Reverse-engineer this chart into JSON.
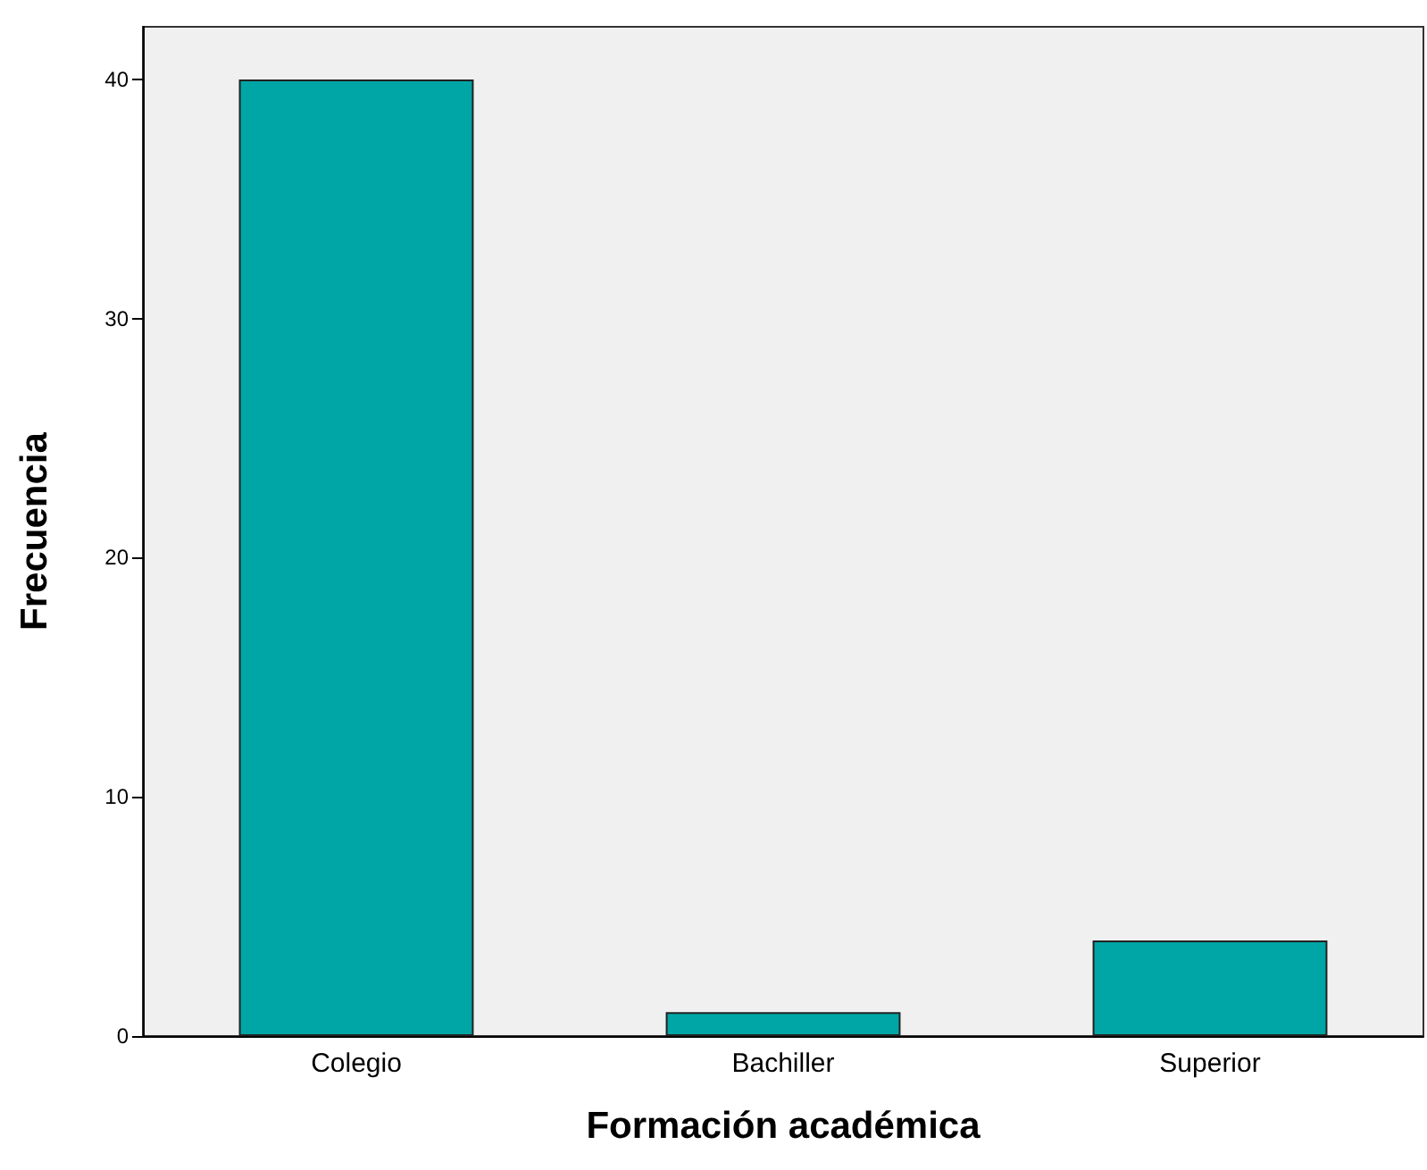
{
  "chart_data": {
    "type": "bar",
    "xlabel": "Formación académica",
    "ylabel": "Frecuencia",
    "categories": [
      "Colegio",
      "Bachiller",
      "Superior"
    ],
    "values": [
      40,
      1,
      4
    ],
    "color": "#00a5a5",
    "ylim": [
      0,
      42.2
    ],
    "yticks": [
      0,
      10,
      20,
      30,
      40
    ],
    "grid": false
  }
}
